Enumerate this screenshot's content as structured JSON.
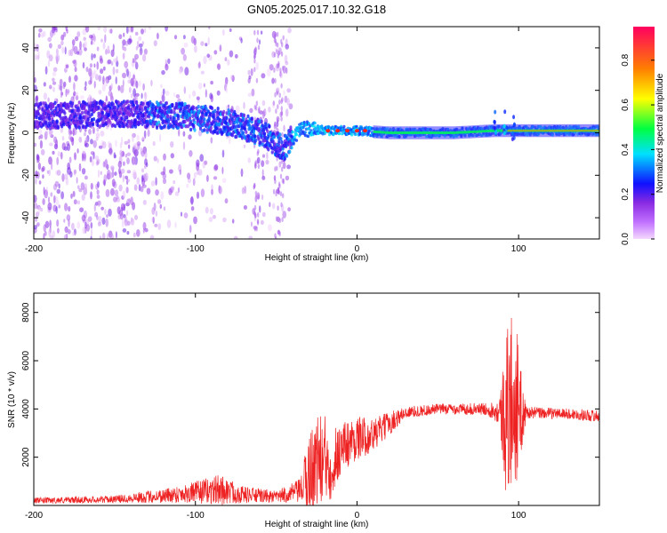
{
  "title": "GN05.2025.017.10.32.G18",
  "chart_data": [
    {
      "type": "heatmap",
      "title": "GN05.2025.017.10.32.G18",
      "xlabel": "Height of straight line (km)",
      "ylabel": "Frequency (Hz)",
      "xlim": [
        -200,
        150
      ],
      "ylim": [
        -50,
        50
      ],
      "xticks": [
        -200,
        -100,
        0,
        100
      ],
      "yticks": [
        -40,
        -20,
        0,
        20,
        40
      ],
      "colorbar": {
        "label": "Normalized spectral amplitude",
        "range": [
          0.0,
          0.95
        ],
        "ticks": [
          0.0,
          0.2,
          0.4,
          0.6,
          0.8
        ],
        "colormap": [
          "#f4d8ff",
          "#8a2be2",
          "#1010ff",
          "#00e0ff",
          "#00ff40",
          "#ffff00",
          "#ff8000",
          "#ff0060"
        ]
      },
      "ridge": [
        {
          "x": -190,
          "f": 8
        },
        {
          "x": -150,
          "f": 9
        },
        {
          "x": -110,
          "f": 8
        },
        {
          "x": -80,
          "f": 5
        },
        {
          "x": -60,
          "f": 0
        },
        {
          "x": -45,
          "f": -7
        },
        {
          "x": -35,
          "f": 2
        },
        {
          "x": -20,
          "f": 1
        },
        {
          "x": 0,
          "f": 1
        },
        {
          "x": 20,
          "f": 0
        },
        {
          "x": 60,
          "f": 0
        },
        {
          "x": 85,
          "f": 1
        },
        {
          "x": 100,
          "f": 1
        },
        {
          "x": 150,
          "f": 1
        }
      ]
    },
    {
      "type": "line",
      "xlabel": "Height of straight line (km)",
      "ylabel": "SNR (10 * v/v)",
      "xlim": [
        -200,
        150
      ],
      "ylim": [
        0,
        8800
      ],
      "xticks": [
        -200,
        -100,
        0,
        100
      ],
      "yticks": [
        2000,
        4000,
        6000,
        8000
      ],
      "color": "#ee2222",
      "envelope": [
        {
          "x": -200,
          "base": 200,
          "spread": 120
        },
        {
          "x": -150,
          "base": 260,
          "spread": 150
        },
        {
          "x": -120,
          "base": 400,
          "spread": 300
        },
        {
          "x": -100,
          "base": 550,
          "spread": 450
        },
        {
          "x": -85,
          "base": 650,
          "spread": 650
        },
        {
          "x": -70,
          "base": 450,
          "spread": 350
        },
        {
          "x": -50,
          "base": 350,
          "spread": 250
        },
        {
          "x": -35,
          "base": 600,
          "spread": 500
        },
        {
          "x": -30,
          "base": 1300,
          "spread": 1700
        },
        {
          "x": -25,
          "base": 1900,
          "spread": 1900
        },
        {
          "x": -20,
          "base": 1800,
          "spread": 2000
        },
        {
          "x": -15,
          "base": 1800,
          "spread": 1500
        },
        {
          "x": -10,
          "base": 2400,
          "spread": 1100
        },
        {
          "x": 0,
          "base": 2800,
          "spread": 900
        },
        {
          "x": 10,
          "base": 2900,
          "spread": 700
        },
        {
          "x": 20,
          "base": 3400,
          "spread": 500
        },
        {
          "x": 30,
          "base": 3850,
          "spread": 250
        },
        {
          "x": 50,
          "base": 4000,
          "spread": 220
        },
        {
          "x": 80,
          "base": 4000,
          "spread": 250
        },
        {
          "x": 88,
          "base": 3900,
          "spread": 500
        },
        {
          "x": 92,
          "base": 3700,
          "spread": 3300
        },
        {
          "x": 97,
          "base": 4500,
          "spread": 4200
        },
        {
          "x": 101,
          "base": 3800,
          "spread": 2000
        },
        {
          "x": 105,
          "base": 3850,
          "spread": 250
        },
        {
          "x": 130,
          "base": 3800,
          "spread": 220
        },
        {
          "x": 150,
          "base": 3700,
          "spread": 250
        }
      ]
    }
  ]
}
